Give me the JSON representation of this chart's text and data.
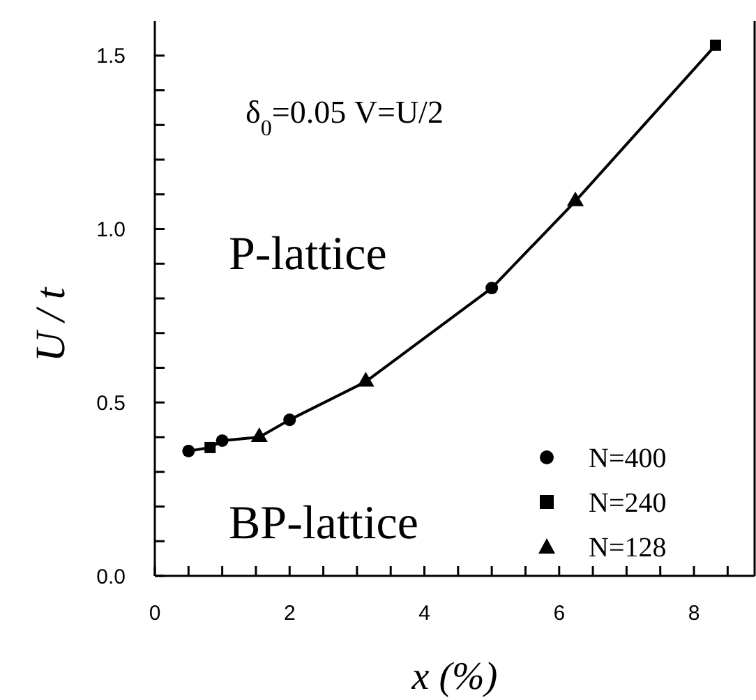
{
  "chart_data": {
    "type": "scatter",
    "xlabel": "x (%)",
    "ylabel": "U / t",
    "annotations": [
      "δ$_{0}$=0.05  V=U/2",
      "P-lattice",
      "BP-lattice"
    ],
    "xlim": [
      0,
      8.9
    ],
    "xticks": [
      0,
      {
        "value": 0.5,
        "label": null
      },
      {
        "value": 1,
        "label": null
      },
      {
        "value": 1.5,
        "label": null
      },
      2,
      {
        "value": 2.5,
        "label": null
      },
      {
        "value": 3,
        "label": null
      },
      {
        "value": 3.5,
        "label": null
      },
      4,
      {
        "value": 4.5,
        "label": null
      },
      {
        "value": 5,
        "label": null
      },
      {
        "value": 5.5,
        "label": null
      },
      6,
      {
        "value": 6.5,
        "label": null
      },
      {
        "value": 7,
        "label": null
      },
      {
        "value": 7.5,
        "label": null
      },
      8,
      {
        "value": 8.5,
        "label": null
      }
    ],
    "ylim": [
      0,
      1.6
    ],
    "yticks": [
      {
        "value": 0,
        "label": "0.0"
      },
      {
        "value": 0.1,
        "label": null
      },
      {
        "value": 0.2,
        "label": null
      },
      {
        "value": 0.3,
        "label": null
      },
      {
        "value": 0.4,
        "label": null
      },
      {
        "value": 0.5,
        "label": "0.5"
      },
      {
        "value": 0.6,
        "label": null
      },
      {
        "value": 0.7,
        "label": null
      },
      {
        "value": 0.8,
        "label": null
      },
      {
        "value": 0.9,
        "label": null
      },
      {
        "value": 1,
        "label": "1.0"
      },
      {
        "value": 1.1,
        "label": null
      },
      {
        "value": 1.2,
        "label": null
      },
      {
        "value": 1.3,
        "label": null
      },
      {
        "value": 1.4,
        "label": null
      },
      {
        "value": 1.5,
        "label": "1.5"
      }
    ],
    "legend": "bottom right",
    "series": [
      {
        "type": "line",
        "color": "#000000",
        "marker": "none",
        "x": [
          0.5,
          0.82,
          1.0,
          1.55,
          2.0,
          3.13,
          5.0,
          6.24,
          8.32
        ],
        "values": [
          0.36,
          0.37,
          0.39,
          0.4,
          0.45,
          0.56,
          0.83,
          1.08,
          1.53
        ]
      },
      {
        "name": "N=400",
        "color": "#000000",
        "marker": "circle",
        "x": [
          0.5,
          1.0,
          2.0,
          5.0
        ],
        "values": [
          0.36,
          0.39,
          0.45,
          0.83
        ]
      },
      {
        "name": "N=240",
        "color": "#000000",
        "marker": "square",
        "x": [
          0.82,
          8.32
        ],
        "values": [
          0.37,
          1.53
        ]
      },
      {
        "name": "N=128",
        "color": "#000000",
        "marker": "triangle",
        "x": [
          1.55,
          3.13,
          6.24
        ],
        "values": [
          0.4,
          0.56,
          1.08
        ]
      }
    ]
  }
}
